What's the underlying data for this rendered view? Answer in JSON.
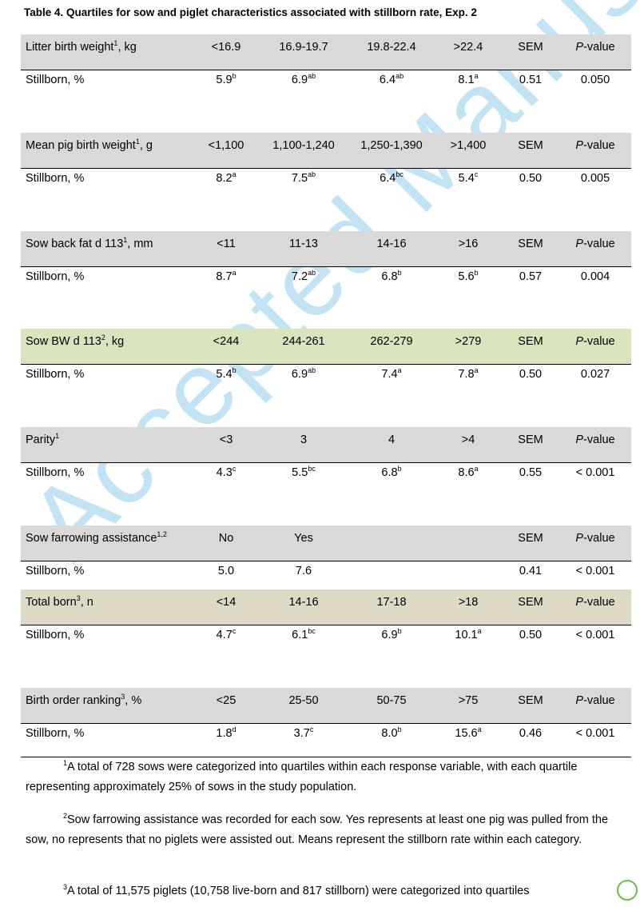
{
  "title": "Table 4. Quartiles for sow and piglet characteristics associated with stillborn rate, Exp. 2",
  "watermark": "Accepted Manuscript",
  "table": {
    "sem_header": "SEM",
    "pvalue_header": {
      "italic": "P",
      "rest": "-value"
    },
    "row_label": "Stillborn, %",
    "blocks": [
      {
        "label": "Litter birth weight",
        "label_sup": "1",
        "unit": ", kg",
        "band": "#d9d9d9",
        "columns": [
          "<16.9",
          "16.9-19.7",
          "19.8-22.4",
          ">22.4"
        ],
        "values": [
          {
            "v": "5.9",
            "sup": "b"
          },
          {
            "v": "6.9",
            "sup": "ab"
          },
          {
            "v": "6.4",
            "sup": "ab"
          },
          {
            "v": "8.1",
            "sup": "a"
          }
        ],
        "sem": "0.51",
        "p": "0.050"
      },
      {
        "label": "Mean pig birth weight",
        "label_sup": "1",
        "unit": ", g",
        "band": "#d9d9d9",
        "columns": [
          "<1,100",
          "1,100-1,240",
          "1,250-1,390",
          ">1,400"
        ],
        "values": [
          {
            "v": "8.2",
            "sup": "a"
          },
          {
            "v": "7.5",
            "sup": "ab"
          },
          {
            "v": "6.4",
            "sup": "bc"
          },
          {
            "v": "5.4",
            "sup": "c"
          }
        ],
        "sem": "0.50",
        "p": "0.005"
      },
      {
        "label": "Sow back fat d 113",
        "label_sup": "1",
        "unit": ", mm",
        "band": "#d9d9d9",
        "columns": [
          "<11",
          "11-13",
          "14-16",
          ">16"
        ],
        "values": [
          {
            "v": "8.7",
            "sup": "a"
          },
          {
            "v": "7.2",
            "sup": "ab"
          },
          {
            "v": "6.8",
            "sup": "b"
          },
          {
            "v": "5.6",
            "sup": "b"
          }
        ],
        "sem": "0.57",
        "p": "0.004"
      },
      {
        "label": "Sow BW d 113",
        "label_sup": "2",
        "unit": ", kg",
        "band": "#d7e4bd",
        "columns": [
          "<244",
          "244-261",
          "262-279",
          ">279"
        ],
        "values": [
          {
            "v": "5.4",
            "sup": "b"
          },
          {
            "v": "6.9",
            "sup": "ab"
          },
          {
            "v": "7.4",
            "sup": "a"
          },
          {
            "v": "7.8",
            "sup": "a"
          }
        ],
        "sem": "0.50",
        "p": "0.027"
      },
      {
        "label": "Parity",
        "label_sup": "1",
        "band": "#d9d9d9",
        "columns": [
          "<3",
          "3",
          "4",
          ">4"
        ],
        "values": [
          {
            "v": "4.3",
            "sup": "c"
          },
          {
            "v": "5.5",
            "sup": "bc"
          },
          {
            "v": "6.8",
            "sup": "b"
          },
          {
            "v": "8.6",
            "sup": "a"
          }
        ],
        "sem": "0.55",
        "p": "< 0.001"
      },
      {
        "label": "Sow farrowing assistance",
        "label_sup": "1,2",
        "band": "#d9d9d9",
        "columns": [
          "No",
          "Yes",
          null,
          null
        ],
        "values": [
          {
            "v": "5.0"
          },
          {
            "v": "7.6"
          },
          null,
          null
        ],
        "sem": "0.41",
        "p": "< 0.001"
      },
      {
        "label": "Total born",
        "label_sup": "3",
        "unit": ", n",
        "band": "#ddd9c4",
        "columns": [
          "<14",
          "14-16",
          "17-18",
          ">18"
        ],
        "values": [
          {
            "v": "4.7",
            "sup": "c"
          },
          {
            "v": "6.1",
            "sup": "bc"
          },
          {
            "v": "6.9",
            "sup": "b"
          },
          {
            "v": "10.1",
            "sup": "a"
          }
        ],
        "sem": "0.50",
        "p": "< 0.001"
      },
      {
        "label": "Birth order ranking",
        "label_sup": "3",
        "unit": ", %",
        "band": "#d9d9d9",
        "columns": [
          "<25",
          "25-50",
          "50-75",
          ">75"
        ],
        "values": [
          {
            "v": "1.8",
            "sup": "d"
          },
          {
            "v": "3.7",
            "sup": "c"
          },
          {
            "v": "8.0",
            "sup": "b"
          },
          {
            "v": "15.6",
            "sup": "a"
          }
        ],
        "sem": "0.46",
        "p": "< 0.001"
      }
    ]
  },
  "footnotes": [
    {
      "sup": "1",
      "text": "A total of 728 sows were categorized into quartiles within each response variable, with each quartile representing approximately 25% of sows in the study population."
    },
    {
      "sup": "2",
      "text": "Sow farrowing assistance was recorded for each sow. Yes represents at least one pig was pulled from the sow, no represents that no piglets were assisted out. Means represent the stillborn rate within each category."
    },
    {
      "sup": "3",
      "text": "A total of 11,575 piglets (10,758 live-born and 817 stillborn) were categorized into quartiles"
    }
  ]
}
